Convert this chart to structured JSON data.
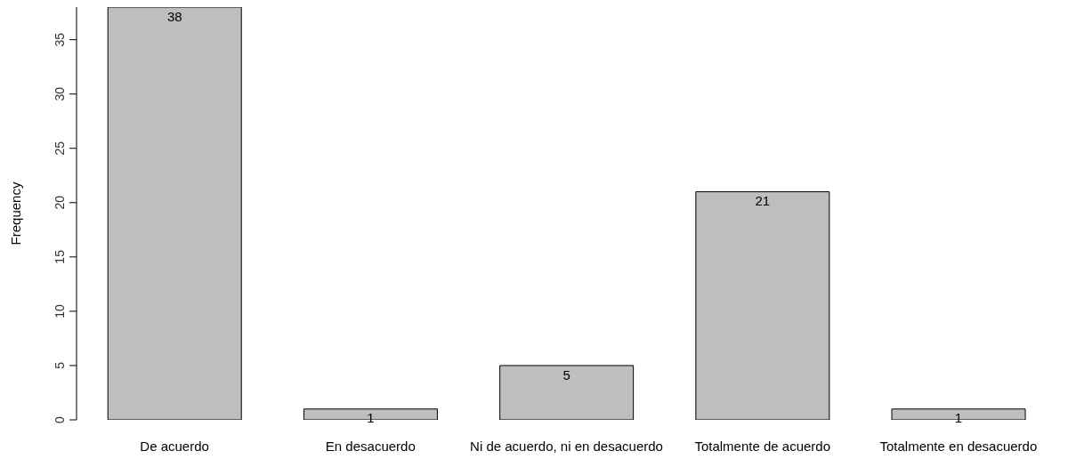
{
  "chart_data": {
    "type": "bar",
    "ylabel": "Frequency",
    "categories": [
      "De acuerdo",
      "En desacuerdo",
      "Ni de acuerdo, ni en desacuerdo",
      "Totalmente de acuerdo",
      "Totalmente en desacuerdo"
    ],
    "values": [
      38,
      1,
      5,
      21,
      1
    ],
    "color": "#bebebe",
    "ylim": [
      0,
      38
    ],
    "yticks": [
      0,
      5,
      10,
      15,
      20,
      25,
      30,
      35
    ],
    "grid": false,
    "legend": false,
    "data_labels": true
  }
}
